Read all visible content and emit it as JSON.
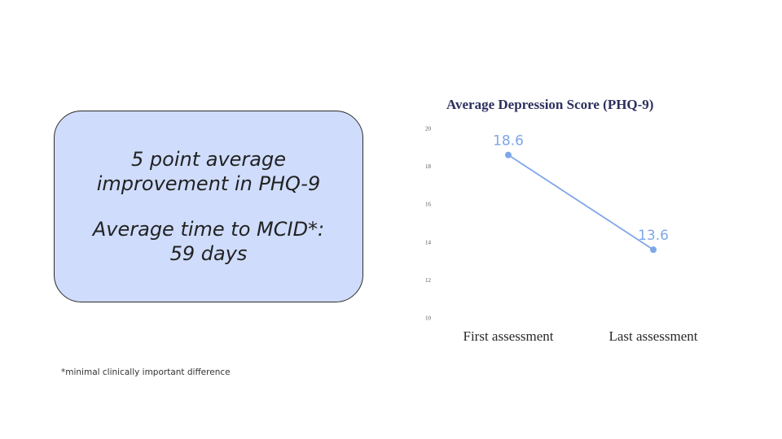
{
  "callout": {
    "line1": "5 point average\nimprovement in PHQ-9",
    "line2": "Average time to MCID*:\n59 days"
  },
  "footnote": "*minimal clinically important difference",
  "colors": {
    "series": "#7ea6ea",
    "callout_fill": "#cfdcfb",
    "title": "#2d2f5e"
  },
  "chart_data": {
    "type": "line",
    "title": "Average Depression Score (PHQ-9)",
    "categories": [
      "First assessment",
      "Last assessment"
    ],
    "series": [
      {
        "values": [
          18.6,
          13.6
        ]
      }
    ],
    "data_labels": [
      "18.6",
      "13.6"
    ],
    "yticks": [
      20,
      18,
      16,
      14,
      12,
      10
    ],
    "ylim": [
      10,
      20
    ],
    "grid": false,
    "legend": "none"
  }
}
